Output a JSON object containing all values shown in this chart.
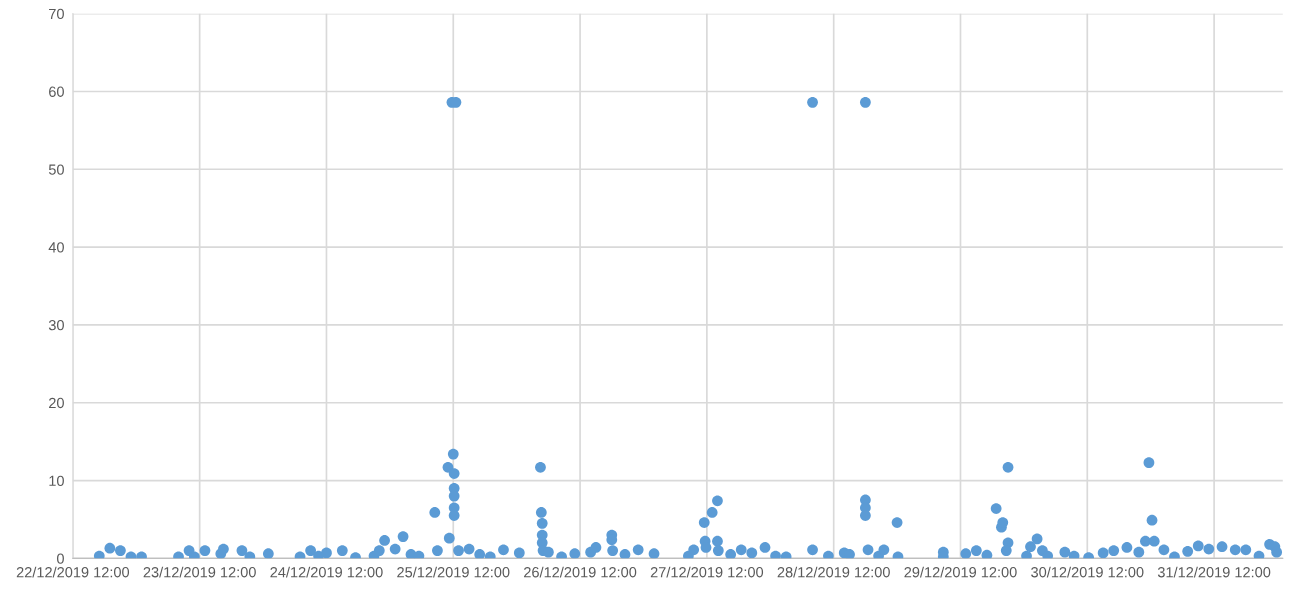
{
  "chart_data": {
    "type": "scatter",
    "marker": "circle",
    "grid": true,
    "legend": false,
    "xlim": [
      "2019-12-22T12:00",
      "2020-01-01T01:00"
    ],
    "xticks": [
      {
        "value": "2019-12-22T12:00",
        "label": "22/12/2019 12:00"
      },
      {
        "value": "2019-12-23T12:00",
        "label": "23/12/2019 12:00"
      },
      {
        "value": "2019-12-24T12:00",
        "label": "24/12/2019 12:00"
      },
      {
        "value": "2019-12-25T12:00",
        "label": "25/12/2019 12:00"
      },
      {
        "value": "2019-12-26T12:00",
        "label": "26/12/2019 12:00"
      },
      {
        "value": "2019-12-27T12:00",
        "label": "27/12/2019 12:00"
      },
      {
        "value": "2019-12-28T12:00",
        "label": "28/12/2019 12:00"
      },
      {
        "value": "2019-12-29T12:00",
        "label": "29/12/2019 12:00"
      },
      {
        "value": "2019-12-30T12:00",
        "label": "30/12/2019 12:00"
      },
      {
        "value": "2019-12-31T12:00",
        "label": "31/12/2019 12:00"
      }
    ],
    "ylim": [
      0,
      70
    ],
    "yticks": [
      0,
      10,
      20,
      30,
      40,
      50,
      60,
      70
    ],
    "series": [
      {
        "color": "#5b9bd5",
        "x": [
          "2019-12-22T17:00",
          "2019-12-22T19:00",
          "2019-12-22T21:00",
          "2019-12-22T23:00",
          "2019-12-23T01:00",
          "2019-12-23T08:00",
          "2019-12-23T10:00",
          "2019-12-23T11:00",
          "2019-12-23T13:00",
          "2019-12-23T16:00",
          "2019-12-23T16:30",
          "2019-12-23T20:00",
          "2019-12-23T21:30",
          "2019-12-24T01:00",
          "2019-12-24T07:00",
          "2019-12-24T09:00",
          "2019-12-24T10:30",
          "2019-12-24T12:00",
          "2019-12-24T15:00",
          "2019-12-24T17:30",
          "2019-12-24T21:00",
          "2019-12-24T22:00",
          "2019-12-24T23:00",
          "2019-12-25T01:00",
          "2019-12-25T02:30",
          "2019-12-25T04:00",
          "2019-12-25T05:30",
          "2019-12-25T08:30",
          "2019-12-25T09:00",
          "2019-12-25T11:00",
          "2019-12-25T11:15",
          "2019-12-25T11:45",
          "2019-12-25T12:30",
          "2019-12-25T12:00",
          "2019-12-25T12:10",
          "2019-12-25T12:10",
          "2019-12-25T12:10",
          "2019-12-25T12:10",
          "2019-12-25T12:10",
          "2019-12-25T13:00",
          "2019-12-25T15:00",
          "2019-12-25T17:00",
          "2019-12-25T19:00",
          "2019-12-25T21:30",
          "2019-12-26T00:30",
          "2019-12-26T04:30",
          "2019-12-26T04:40",
          "2019-12-26T04:50",
          "2019-12-26T04:50",
          "2019-12-26T04:50",
          "2019-12-26T05:00",
          "2019-12-26T06:00",
          "2019-12-26T08:30",
          "2019-12-26T11:00",
          "2019-12-26T14:00",
          "2019-12-26T15:00",
          "2019-12-26T18:00",
          "2019-12-26T18:00",
          "2019-12-26T18:10",
          "2019-12-26T20:30",
          "2019-12-26T23:00",
          "2019-12-27T02:00",
          "2019-12-27T08:30",
          "2019-12-27T09:30",
          "2019-12-27T11:30",
          "2019-12-27T11:40",
          "2019-12-27T11:50",
          "2019-12-27T13:00",
          "2019-12-27T14:00",
          "2019-12-27T14:00",
          "2019-12-27T14:10",
          "2019-12-27T16:30",
          "2019-12-27T18:30",
          "2019-12-27T20:30",
          "2019-12-27T23:00",
          "2019-12-28T01:00",
          "2019-12-28T03:00",
          "2019-12-28T08:00",
          "2019-12-28T08:00",
          "2019-12-28T11:00",
          "2019-12-28T14:00",
          "2019-12-28T15:00",
          "2019-12-28T18:00",
          "2019-12-28T18:00",
          "2019-12-28T18:00",
          "2019-12-28T18:00",
          "2019-12-28T18:30",
          "2019-12-28T20:30",
          "2019-12-28T21:30",
          "2019-12-29T00:00",
          "2019-12-29T00:10",
          "2019-12-29T08:45",
          "2019-12-29T08:45",
          "2019-12-29T13:00",
          "2019-12-29T15:00",
          "2019-12-29T17:00",
          "2019-12-29T18:45",
          "2019-12-29T19:45",
          "2019-12-29T20:00",
          "2019-12-29T21:00",
          "2019-12-29T21:00",
          "2019-12-29T20:40",
          "2019-12-30T00:30",
          "2019-12-30T01:15",
          "2019-12-30T02:30",
          "2019-12-30T03:30",
          "2019-12-30T04:30",
          "2019-12-30T07:45",
          "2019-12-30T09:30",
          "2019-12-30T12:15",
          "2019-12-30T15:00",
          "2019-12-30T17:00",
          "2019-12-30T19:30",
          "2019-12-30T21:45",
          "2019-12-30T23:00",
          "2019-12-30T23:40",
          "2019-12-31T00:15",
          "2019-12-31T00:40",
          "2019-12-31T02:30",
          "2019-12-31T04:30",
          "2019-12-31T07:00",
          "2019-12-31T09:00",
          "2019-12-31T11:00",
          "2019-12-31T13:30",
          "2019-12-31T16:00",
          "2019-12-31T18:00",
          "2019-12-31T20:30",
          "2019-12-31T22:30",
          "2019-12-31T23:30",
          "2019-12-31T23:50"
        ],
        "values": [
          0.3,
          1.3,
          1.0,
          0.2,
          0.2,
          0.2,
          1.0,
          0.2,
          1.0,
          0.6,
          1.2,
          1.0,
          0.2,
          0.6,
          0.2,
          1.0,
          0.3,
          0.7,
          1.0,
          0.1,
          0.3,
          1.0,
          2.3,
          1.2,
          2.8,
          0.5,
          0.3,
          5.9,
          1.0,
          11.7,
          2.6,
          58.6,
          58.6,
          13.4,
          10.9,
          9.0,
          8.0,
          6.5,
          5.5,
          1.0,
          1.2,
          0.5,
          0.2,
          1.1,
          0.7,
          11.7,
          5.9,
          4.5,
          3.0,
          2.0,
          1.0,
          0.8,
          0.2,
          0.6,
          0.8,
          1.4,
          3.0,
          2.4,
          1.0,
          0.5,
          1.1,
          0.6,
          0.3,
          1.1,
          4.6,
          2.2,
          1.4,
          5.9,
          7.4,
          2.2,
          1.0,
          0.5,
          1.1,
          0.7,
          1.4,
          0.3,
          0.2,
          58.6,
          1.1,
          0.3,
          0.7,
          0.5,
          58.6,
          7.5,
          6.5,
          5.5,
          1.1,
          0.3,
          1.1,
          4.6,
          0.2,
          0.8,
          0.2,
          0.6,
          1.0,
          0.4,
          6.4,
          4.0,
          4.6,
          11.7,
          2.0,
          1.0,
          0.3,
          1.5,
          2.5,
          1.0,
          0.3,
          0.8,
          0.3,
          0.1,
          0.7,
          1.0,
          1.4,
          0.8,
          2.2,
          12.3,
          4.9,
          2.2,
          1.1,
          0.2,
          0.9,
          1.6,
          1.2,
          1.5,
          1.1,
          1.1,
          0.3,
          1.8,
          1.5,
          0.8
        ]
      }
    ]
  }
}
